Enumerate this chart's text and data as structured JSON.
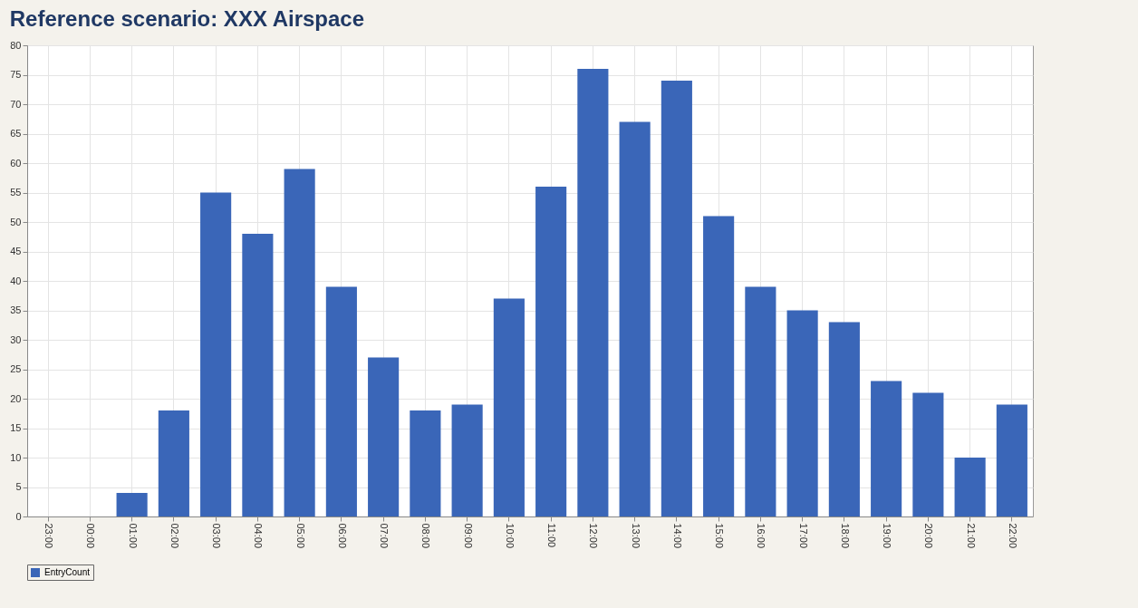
{
  "chart_data": {
    "type": "bar",
    "title": "Reference scenario: XXX Airspace",
    "categories": [
      "23:00",
      "00:00",
      "01:00",
      "02:00",
      "03:00",
      "04:00",
      "05:00",
      "06:00",
      "07:00",
      "08:00",
      "09:00",
      "10:00",
      "11:00",
      "12:00",
      "13:00",
      "14:00",
      "15:00",
      "16:00",
      "17:00",
      "18:00",
      "19:00",
      "20:00",
      "21:00",
      "22:00"
    ],
    "series": [
      {
        "name": "EntryCount",
        "color": "#3a66b8",
        "values": [
          0,
          0,
          4,
          18,
          55,
          48,
          59,
          39,
          27,
          18,
          19,
          37,
          56,
          76,
          67,
          74,
          51,
          39,
          35,
          33,
          23,
          21,
          10,
          19
        ]
      }
    ],
    "ylim": [
      0,
      80
    ],
    "yticks": [
      0,
      5,
      10,
      15,
      20,
      25,
      30,
      35,
      40,
      45,
      50,
      55,
      60,
      65,
      70,
      75,
      80
    ],
    "grid": true,
    "legend": "bottom"
  }
}
